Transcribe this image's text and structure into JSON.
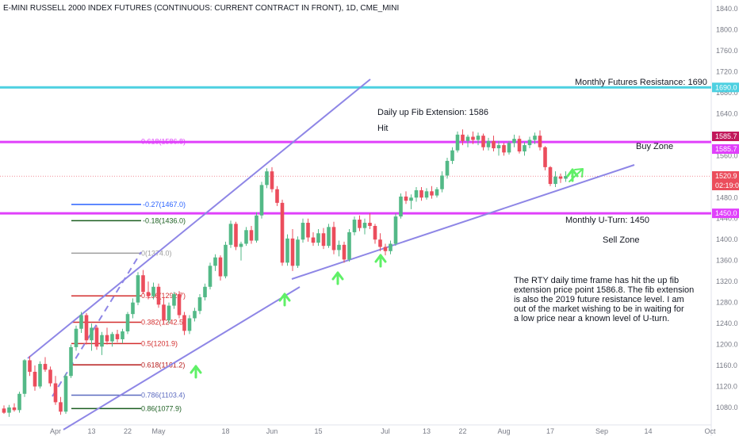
{
  "header": {
    "title": "E-MINI RUSSELL 2000 INDEX FUTURES (CONTINUOUS: CURRENT CONTRACT IN FRONT), 1D, CME_MINI"
  },
  "colors": {
    "up": "#53b987",
    "down": "#eb4d5c",
    "trendline": "#8e86e6",
    "magenta": "#e040fb",
    "cyan": "#4dd0e1",
    "arrow": "#5ff067"
  },
  "chart_data": {
    "type": "candlestick",
    "title": "E-MINI RUSSELL 2000 INDEX FUTURES (CONTINUOUS: CURRENT CONTRACT IN FRONT), 1D, CME_MINI",
    "ylim": [
      1040,
      1860
    ],
    "y_ticks": [
      "1080.0",
      "1120.0",
      "1160.0",
      "1200.0",
      "1240.0",
      "1280.0",
      "1320.0",
      "1360.0",
      "1400.0",
      "1440.0",
      "1480.0",
      "1520.0",
      "1560.0",
      "1600.0",
      "1640.0",
      "1680.0",
      "1720.0",
      "1760.0",
      "1800.0",
      "1840.0"
    ],
    "x_ticks": [
      "Apr",
      "13",
      "22",
      "May",
      "18",
      "Jun",
      "15",
      "Jul",
      "13",
      "22",
      "Aug",
      "17",
      "Sep",
      "14",
      "Oct",
      "12"
    ],
    "x_tick_index": [
      10,
      17,
      24,
      30,
      43,
      52,
      61,
      74,
      82,
      89,
      97,
      106,
      116,
      125,
      137,
      146
    ],
    "x_range_index": [
      0,
      158
    ],
    "candles": [
      [
        1078,
        1084,
        1068,
        1070
      ],
      [
        1070,
        1085,
        1062,
        1080
      ],
      [
        1080,
        1088,
        1072,
        1075
      ],
      [
        1075,
        1110,
        1070,
        1106
      ],
      [
        1106,
        1172,
        1100,
        1170
      ],
      [
        1170,
        1178,
        1140,
        1148
      ],
      [
        1148,
        1160,
        1112,
        1120
      ],
      [
        1120,
        1168,
        1116,
        1163
      ],
      [
        1163,
        1176,
        1148,
        1152
      ],
      [
        1152,
        1158,
        1120,
        1126
      ],
      [
        1126,
        1140,
        1085,
        1090
      ],
      [
        1090,
        1100,
        1066,
        1072
      ],
      [
        1072,
        1145,
        1068,
        1140
      ],
      [
        1140,
        1200,
        1136,
        1195
      ],
      [
        1195,
        1236,
        1188,
        1230
      ],
      [
        1230,
        1262,
        1222,
        1256
      ],
      [
        1256,
        1260,
        1200,
        1208
      ],
      [
        1208,
        1240,
        1188,
        1232
      ],
      [
        1232,
        1236,
        1190,
        1196
      ],
      [
        1196,
        1224,
        1180,
        1218
      ],
      [
        1218,
        1232,
        1200,
        1206
      ],
      [
        1206,
        1224,
        1196,
        1220
      ],
      [
        1220,
        1228,
        1204,
        1210
      ],
      [
        1210,
        1230,
        1202,
        1225
      ],
      [
        1225,
        1262,
        1220,
        1258
      ],
      [
        1258,
        1288,
        1250,
        1280
      ],
      [
        1280,
        1338,
        1275,
        1332
      ],
      [
        1332,
        1342,
        1296,
        1300
      ],
      [
        1300,
        1320,
        1286,
        1292
      ],
      [
        1292,
        1318,
        1286,
        1310
      ],
      [
        1310,
        1316,
        1270,
        1276
      ],
      [
        1276,
        1290,
        1240,
        1246
      ],
      [
        1246,
        1280,
        1240,
        1274
      ],
      [
        1274,
        1300,
        1268,
        1296
      ],
      [
        1296,
        1302,
        1250,
        1256
      ],
      [
        1256,
        1262,
        1218,
        1226
      ],
      [
        1226,
        1256,
        1220,
        1250
      ],
      [
        1250,
        1270,
        1244,
        1264
      ],
      [
        1264,
        1296,
        1258,
        1290
      ],
      [
        1290,
        1316,
        1284,
        1310
      ],
      [
        1310,
        1356,
        1305,
        1350
      ],
      [
        1350,
        1372,
        1340,
        1366
      ],
      [
        1366,
        1370,
        1322,
        1330
      ],
      [
        1330,
        1396,
        1326,
        1390
      ],
      [
        1390,
        1436,
        1384,
        1430
      ],
      [
        1430,
        1434,
        1380,
        1386
      ],
      [
        1386,
        1396,
        1360,
        1392
      ],
      [
        1392,
        1424,
        1388,
        1418
      ],
      [
        1418,
        1426,
        1392,
        1398
      ],
      [
        1398,
        1452,
        1394,
        1446
      ],
      [
        1446,
        1510,
        1440,
        1504
      ],
      [
        1504,
        1536,
        1498,
        1530
      ],
      [
        1530,
        1538,
        1490,
        1496
      ],
      [
        1496,
        1502,
        1464,
        1470
      ],
      [
        1470,
        1476,
        1350,
        1356
      ],
      [
        1356,
        1410,
        1350,
        1402
      ],
      [
        1402,
        1420,
        1340,
        1350
      ],
      [
        1350,
        1406,
        1346,
        1400
      ],
      [
        1400,
        1440,
        1394,
        1432
      ],
      [
        1432,
        1440,
        1396,
        1404
      ],
      [
        1404,
        1414,
        1388,
        1394
      ],
      [
        1394,
        1420,
        1388,
        1412
      ],
      [
        1412,
        1422,
        1382,
        1388
      ],
      [
        1388,
        1430,
        1384,
        1424
      ],
      [
        1424,
        1434,
        1372,
        1380
      ],
      [
        1380,
        1398,
        1368,
        1390
      ],
      [
        1390,
        1396,
        1356,
        1362
      ],
      [
        1362,
        1420,
        1358,
        1414
      ],
      [
        1414,
        1444,
        1408,
        1438
      ],
      [
        1438,
        1446,
        1416,
        1422
      ],
      [
        1422,
        1440,
        1410,
        1432
      ],
      [
        1432,
        1450,
        1420,
        1426
      ],
      [
        1426,
        1430,
        1392,
        1400
      ],
      [
        1400,
        1412,
        1378,
        1386
      ],
      [
        1386,
        1392,
        1370,
        1378
      ],
      [
        1378,
        1398,
        1372,
        1392
      ],
      [
        1392,
        1450,
        1388,
        1444
      ],
      [
        1444,
        1488,
        1440,
        1482
      ],
      [
        1482,
        1492,
        1468,
        1474
      ],
      [
        1474,
        1486,
        1458,
        1480
      ],
      [
        1480,
        1500,
        1472,
        1494
      ],
      [
        1494,
        1500,
        1474,
        1480
      ],
      [
        1480,
        1498,
        1476,
        1492
      ],
      [
        1492,
        1502,
        1478,
        1484
      ],
      [
        1484,
        1500,
        1480,
        1496
      ],
      [
        1496,
        1530,
        1490,
        1522
      ],
      [
        1522,
        1556,
        1516,
        1550
      ],
      [
        1550,
        1576,
        1544,
        1570
      ],
      [
        1570,
        1606,
        1566,
        1600
      ],
      [
        1600,
        1610,
        1580,
        1588
      ],
      [
        1588,
        1600,
        1576,
        1596
      ],
      [
        1596,
        1606,
        1582,
        1590
      ],
      [
        1590,
        1604,
        1580,
        1598
      ],
      [
        1598,
        1602,
        1570,
        1576
      ],
      [
        1576,
        1594,
        1570,
        1588
      ],
      [
        1588,
        1598,
        1568,
        1574
      ],
      [
        1574,
        1588,
        1560,
        1580
      ],
      [
        1580,
        1584,
        1560,
        1566
      ],
      [
        1566,
        1588,
        1562,
        1584
      ],
      [
        1584,
        1600,
        1576,
        1592
      ],
      [
        1592,
        1598,
        1564,
        1568
      ],
      [
        1568,
        1586,
        1560,
        1580
      ],
      [
        1580,
        1596,
        1574,
        1590
      ],
      [
        1590,
        1604,
        1582,
        1598
      ],
      [
        1598,
        1608,
        1570,
        1576
      ],
      [
        1576,
        1578,
        1532,
        1538
      ],
      [
        1538,
        1540,
        1502,
        1506
      ],
      [
        1506,
        1530,
        1500,
        1520
      ],
      [
        1520,
        1526,
        1508,
        1516
      ],
      [
        1516,
        1530,
        1510,
        1521
      ]
    ],
    "levels": [
      {
        "label": "Monthly Futures Resistance:  1690",
        "value": 1690,
        "color": "#4dd0e1",
        "tag": "1690.0"
      },
      {
        "label": "Daily up Fib Extension:  1586",
        "value": 1586,
        "color": "#e040fb",
        "tag": "1585.7"
      },
      {
        "label": "Monthly  U-Turn:  1450",
        "value": 1450,
        "color": "#e040fb",
        "tag": "1450.0"
      }
    ],
    "fib_levels": [
      {
        "label": "0.618(1586.8)",
        "value": 1586.8,
        "color": "#e040fb"
      },
      {
        "label": "-0.27(1467.0)",
        "value": 1467.0,
        "color": "#2962ff"
      },
      {
        "label": "-0.18(1436.0)",
        "value": 1436.0,
        "color": "#1b5e20"
      },
      {
        "label": "0(1374.0)",
        "value": 1374.0,
        "color": "#9e9e9e"
      },
      {
        "label": "0.236(1292.7)",
        "value": 1292.7,
        "color": "#d32f2f"
      },
      {
        "label": "0.382(1242.5)",
        "value": 1242.5,
        "color": "#d32f2f"
      },
      {
        "label": "0.5(1201.9)",
        "value": 1201.9,
        "color": "#d32f2f"
      },
      {
        "label": "0.618(1161.2)",
        "value": 1161.2,
        "color": "#b71c1c"
      },
      {
        "label": "0.786(1103.4)",
        "value": 1103.4,
        "color": "#5c6bc0"
      },
      {
        "label": "0.86(1077.9)",
        "value": 1077.9,
        "color": "#1b5e20"
      }
    ],
    "price_tags": [
      {
        "text": "1585.7",
        "value": 1585.7,
        "bg": "#c2185b",
        "fg": "#ffffff"
      },
      {
        "text": "1585.7",
        "value": 1585.7,
        "bg": "#e040fb",
        "fg": "#ffffff"
      },
      {
        "text": "1520.9",
        "value": 1520.9,
        "bg": "#eb4d5c",
        "fg": "#ffffff"
      },
      {
        "text": "02:19:09",
        "value": 1501,
        "bg": "#eb4d5c",
        "fg": "#ffffff"
      }
    ]
  },
  "annotations": {
    "resistance": "Monthly Futures Resistance:  1690",
    "fib_extension": "Daily up Fib Extension:  1586",
    "hit": "Hit",
    "buy_zone": "Buy Zone",
    "u_turn": "Monthly  U-Turn:  1450",
    "sell_zone": "Sell Zone",
    "note_lines": [
      "The RTY daily time frame has hit the up fib",
      "extension price point 1586.8.  The fib extension",
      "is also the 2019 future resistance level.  I am",
      "out of the market wishing to be in waiting for",
      "a low price near a known level of U-turn."
    ]
  }
}
